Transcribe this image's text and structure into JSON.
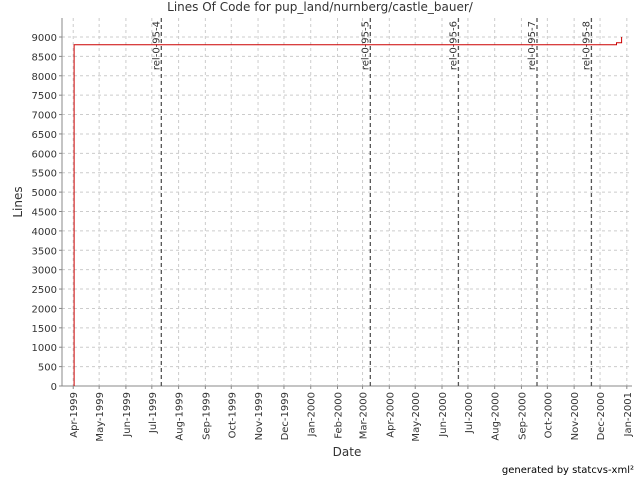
{
  "chart_data": {
    "type": "line",
    "title": "Lines Of Code for pup_land/nurnberg/castle_bauer/",
    "x_label": "Date",
    "y_label": "Lines",
    "series": [
      {
        "name": "Lines",
        "color": "#cc0000",
        "x": [
          "1999-04-02",
          "1999-04-02",
          "2000-12-20",
          "2000-12-20",
          "2000-12-26",
          "2000-12-26"
        ],
        "values": [
          0,
          8800,
          8800,
          8850,
          8850,
          9000
        ]
      }
    ],
    "markers": [
      {
        "label": "rel-0-95-4",
        "x": "1999-07-12"
      },
      {
        "label": "rel-0-95-5",
        "x": "2000-03-10"
      },
      {
        "label": "rel-0-95-6",
        "x": "2000-06-20"
      },
      {
        "label": "rel-0-95-7",
        "x": "2000-09-19"
      },
      {
        "label": "rel-0-95-8",
        "x": "2000-11-21"
      }
    ],
    "xlim": [
      "1999-03-19",
      "2001-01-07"
    ],
    "xticks": [
      {
        "value": "1999-04-01",
        "label": "Apr-1999"
      },
      {
        "value": "1999-05-01",
        "label": "May-1999"
      },
      {
        "value": "1999-06-01",
        "label": "Jun-1999"
      },
      {
        "value": "1999-07-01",
        "label": "Jul-1999"
      },
      {
        "value": "1999-08-01",
        "label": "Aug-1999"
      },
      {
        "value": "1999-09-01",
        "label": "Sep-1999"
      },
      {
        "value": "1999-10-01",
        "label": "Oct-1999"
      },
      {
        "value": "1999-11-01",
        "label": "Nov-1999"
      },
      {
        "value": "1999-12-01",
        "label": "Dec-1999"
      },
      {
        "value": "2000-01-01",
        "label": "Jan-2000"
      },
      {
        "value": "2000-02-01",
        "label": "Feb-2000"
      },
      {
        "value": "2000-03-01",
        "label": "Mar-2000"
      },
      {
        "value": "2000-04-01",
        "label": "Apr-2000"
      },
      {
        "value": "2000-05-01",
        "label": "May-2000"
      },
      {
        "value": "2000-06-01",
        "label": "Jun-2000"
      },
      {
        "value": "2000-07-01",
        "label": "Jul-2000"
      },
      {
        "value": "2000-08-01",
        "label": "Aug-2000"
      },
      {
        "value": "2000-09-01",
        "label": "Sep-2000"
      },
      {
        "value": "2000-10-01",
        "label": "Oct-2000"
      },
      {
        "value": "2000-11-01",
        "label": "Nov-2000"
      },
      {
        "value": "2000-12-01",
        "label": "Dec-2000"
      },
      {
        "value": "2001-01-01",
        "label": "Jan-2001"
      }
    ],
    "ylim": [
      0,
      9490
    ],
    "yticks": [
      0,
      500,
      1000,
      1500,
      2000,
      2500,
      3000,
      3500,
      4000,
      4500,
      5000,
      5500,
      6000,
      6500,
      7000,
      7500,
      8000,
      8500,
      9000
    ],
    "grid": true
  },
  "footer": "generated by statcvs-xml²"
}
